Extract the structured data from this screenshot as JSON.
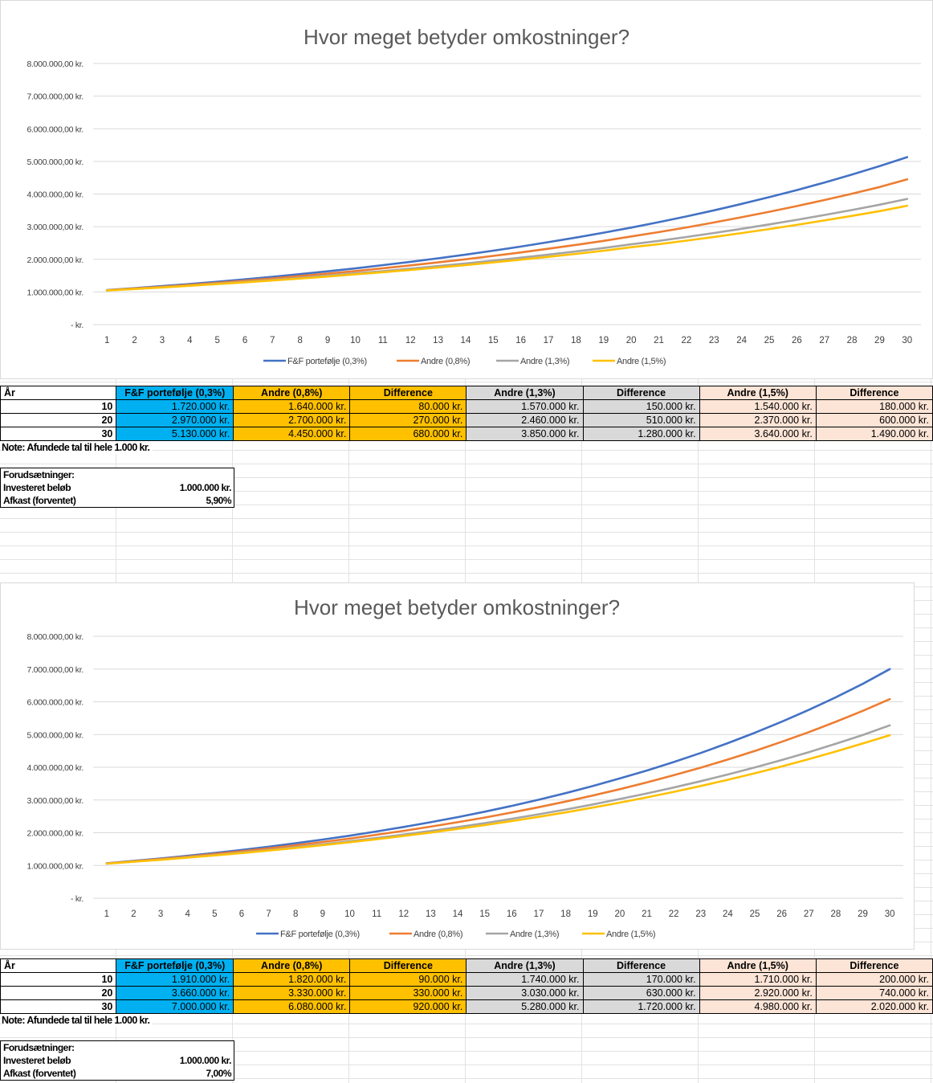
{
  "chart_data": [
    {
      "type": "line",
      "title": "Hvor meget betyder omkostninger?",
      "categories": [
        "1",
        "2",
        "3",
        "4",
        "5",
        "6",
        "7",
        "8",
        "9",
        "10",
        "11",
        "12",
        "13",
        "14",
        "15",
        "16",
        "17",
        "18",
        "19",
        "20",
        "21",
        "22",
        "23",
        "24",
        "25",
        "26",
        "27",
        "28",
        "29",
        "30"
      ],
      "y_ticks": [
        "8.000.000,00 kr.",
        "7.000.000,00 kr.",
        "6.000.000,00 kr.",
        "5.000.000,00 kr.",
        "4.000.000,00 kr.",
        "3.000.000,00 kr.",
        "2.000.000,00 kr.",
        "1.000.000,00 kr.",
        "-   kr."
      ],
      "ylim": [
        0,
        8000000
      ],
      "legend_position": "bottom",
      "series": [
        {
          "name": "F&F portefølje (0,3%)",
          "color": "#4472c4",
          "values": [
            1056000,
            1115000,
            1178000,
            1244000,
            1313000,
            1387000,
            1464000,
            1546000,
            1633000,
            1720000,
            1821000,
            1923000,
            2030000,
            2144000,
            2264000,
            2391000,
            2525000,
            2666000,
            2815000,
            2970000,
            3139000,
            3314000,
            3500000,
            3696000,
            3903000,
            4121000,
            4352000,
            4595000,
            4853000,
            5130000
          ]
        },
        {
          "name": "Andre (0,8%)",
          "color": "#ed7d31",
          "values": [
            1051000,
            1104000,
            1160000,
            1219000,
            1281000,
            1346000,
            1415000,
            1487000,
            1562000,
            1640000,
            1725000,
            1813000,
            1905000,
            2002000,
            2104000,
            2211000,
            2323000,
            2441000,
            2566000,
            2700000,
            2833000,
            2977000,
            3129000,
            3288000,
            3455000,
            3631000,
            3815000,
            4010000,
            4214000,
            4450000
          ]
        },
        {
          "name": "Andre (1,3%)",
          "color": "#a5a5a5",
          "values": [
            1046000,
            1094000,
            1144000,
            1197000,
            1252000,
            1309000,
            1369000,
            1432000,
            1498000,
            1570000,
            1638000,
            1713000,
            1791000,
            1874000,
            1960000,
            2050000,
            2144000,
            2242000,
            2345000,
            2460000,
            2565000,
            2683000,
            2806000,
            2935000,
            3069000,
            3210000,
            3357000,
            3511000,
            3672000,
            3850000
          ]
        },
        {
          "name": "Andre (1,5%)",
          "color": "#ffc000",
          "values": [
            1044000,
            1090000,
            1138000,
            1188000,
            1240000,
            1294000,
            1351000,
            1410000,
            1472000,
            1540000,
            1604000,
            1675000,
            1748000,
            1825000,
            1905000,
            1988000,
            2076000,
            2167000,
            2262000,
            2370000,
            2465000,
            2573000,
            2686000,
            2804000,
            2927000,
            3056000,
            3190000,
            3330000,
            3476000,
            3640000
          ]
        }
      ]
    },
    {
      "type": "line",
      "title": "Hvor meget betyder omkostninger?",
      "categories": [
        "1",
        "2",
        "3",
        "4",
        "5",
        "6",
        "7",
        "8",
        "9",
        "10",
        "11",
        "12",
        "13",
        "14",
        "15",
        "16",
        "17",
        "18",
        "19",
        "20",
        "21",
        "22",
        "23",
        "24",
        "25",
        "26",
        "27",
        "28",
        "29",
        "30"
      ],
      "y_ticks": [
        "8.000.000,00 kr.",
        "7.000.000,00 kr.",
        "6.000.000,00 kr.",
        "5.000.000,00 kr.",
        "4.000.000,00 kr.",
        "3.000.000,00 kr.",
        "2.000.000,00 kr.",
        "1.000.000,00 kr.",
        "-   kr."
      ],
      "ylim": [
        0,
        8000000
      ],
      "legend_position": "bottom",
      "series": [
        {
          "name": "F&F portefølje (0,3%)",
          "color": "#4472c4",
          "values": [
            1067000,
            1138000,
            1214000,
            1296000,
            1382000,
            1475000,
            1574000,
            1679000,
            1791000,
            1910000,
            2040000,
            2176000,
            2322000,
            2477000,
            2643000,
            2820000,
            3009000,
            3210000,
            3425000,
            3660000,
            3899000,
            4160000,
            4438000,
            4736000,
            5053000,
            5391000,
            5752000,
            6137000,
            6548000,
            7000000
          ]
        },
        {
          "name": "Andre (0,8%)",
          "color": "#ed7d31",
          "values": [
            1062000,
            1128000,
            1198000,
            1272000,
            1351000,
            1435000,
            1524000,
            1618000,
            1719000,
            1820000,
            1938000,
            2058000,
            2186000,
            2321000,
            2465000,
            2618000,
            2780000,
            2953000,
            3136000,
            3330000,
            3536000,
            3756000,
            3988000,
            4236000,
            4498000,
            4777000,
            5073000,
            5388000,
            5722000,
            6080000
          ]
        },
        {
          "name": "Andre (1,3%)",
          "color": "#a5a5a5",
          "values": [
            1057000,
            1117000,
            1181000,
            1248000,
            1319000,
            1394000,
            1473000,
            1557000,
            1646000,
            1740000,
            1839000,
            1943000,
            2054000,
            2171000,
            2295000,
            2425000,
            2564000,
            2710000,
            2864000,
            3030000,
            3200000,
            3382000,
            3575000,
            3778000,
            3994000,
            4221000,
            4462000,
            4716000,
            4985000,
            5280000
          ]
        },
        {
          "name": "Andre (1,5%)",
          "color": "#ffc000",
          "values": [
            1055000,
            1113000,
            1174000,
            1239000,
            1307000,
            1379000,
            1455000,
            1535000,
            1619000,
            1710000,
            1802000,
            1902000,
            2006000,
            2117000,
            2233000,
            2356000,
            2486000,
            2622000,
            2767000,
            2920000,
            3080000,
            3249000,
            3428000,
            3616000,
            3815000,
            4025000,
            4247000,
            4480000,
            4727000,
            4980000
          ]
        }
      ]
    }
  ],
  "tables": [
    {
      "headers": [
        "År",
        "F&F portefølje (0,3%)",
        "Andre (0,8%)",
        "Difference",
        "Andre (1,3%)",
        "Difference",
        "Andre (1,5%)",
        "Difference"
      ],
      "rows": [
        [
          "10",
          "1.720.000 kr.",
          "1.640.000 kr.",
          "80.000 kr.",
          "1.570.000 kr.",
          "150.000 kr.",
          "1.540.000 kr.",
          "180.000 kr."
        ],
        [
          "20",
          "2.970.000 kr.",
          "2.700.000 kr.",
          "270.000 kr.",
          "2.460.000 kr.",
          "510.000 kr.",
          "2.370.000 kr.",
          "600.000 kr."
        ],
        [
          "30",
          "5.130.000 kr.",
          "4.450.000 kr.",
          "680.000 kr.",
          "3.850.000 kr.",
          "1.280.000 kr.",
          "3.640.000 kr.",
          "1.490.000 kr."
        ]
      ],
      "note": "Note: Afundede tal til hele 1.000 kr.",
      "assumptions": {
        "title": "Forudsætninger:",
        "invest_label": "Investeret beløb",
        "invest_value": "1.000.000 kr.",
        "return_label": "Afkast (forventet)",
        "return_value": "5,90%"
      }
    },
    {
      "headers": [
        "År",
        "F&F portefølje (0,3%)",
        "Andre (0,8%)",
        "Difference",
        "Andre (1,3%)",
        "Difference",
        "Andre (1,5%)",
        "Difference"
      ],
      "rows": [
        [
          "10",
          "1.910.000 kr.",
          "1.820.000 kr.",
          "90.000 kr.",
          "1.740.000 kr.",
          "170.000 kr.",
          "1.710.000 kr.",
          "200.000 kr."
        ],
        [
          "20",
          "3.660.000 kr.",
          "3.330.000 kr.",
          "330.000 kr.",
          "3.030.000 kr.",
          "630.000 kr.",
          "2.920.000 kr.",
          "740.000 kr."
        ],
        [
          "30",
          "7.000.000 kr.",
          "6.080.000 kr.",
          "920.000 kr.",
          "5.280.000 kr.",
          "1.720.000 kr.",
          "4.980.000 kr.",
          "2.020.000 kr."
        ]
      ],
      "note": "Note: Afundede tal til hele 1.000 kr.",
      "assumptions": {
        "title": "Forudsætninger:",
        "invest_label": "Investeret beløb",
        "invest_value": "1.000.000 kr.",
        "return_label": "Afkast (forventet)",
        "return_value": "7,00%"
      }
    }
  ]
}
